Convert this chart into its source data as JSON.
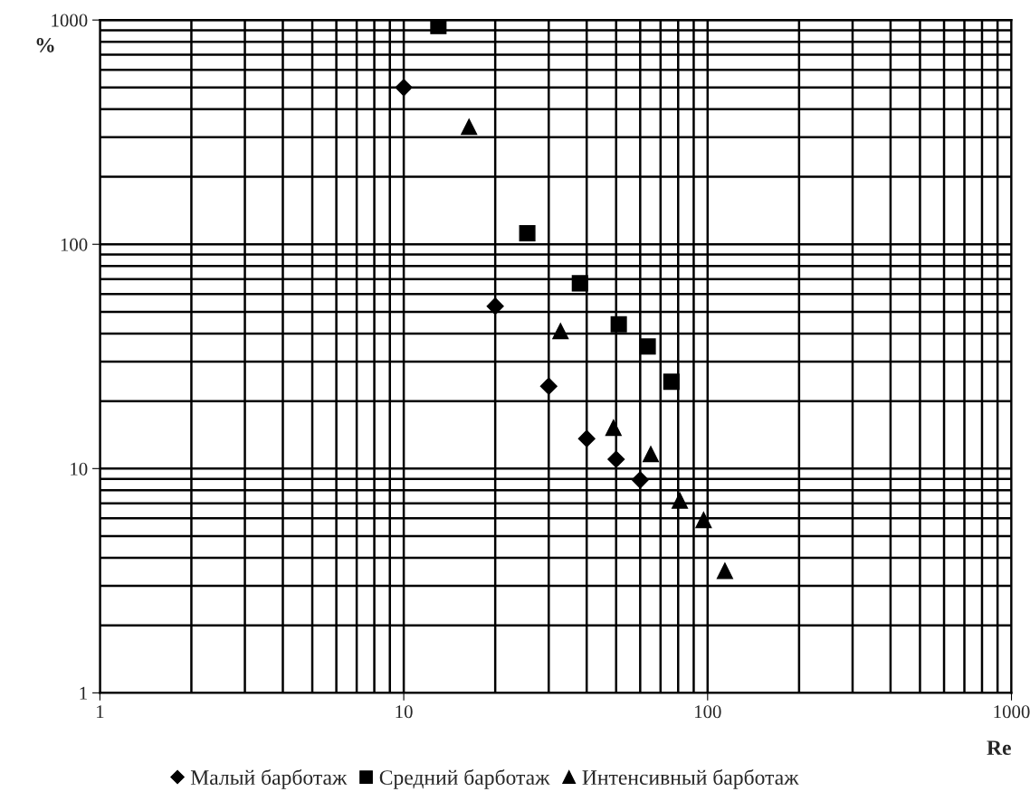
{
  "chart_data": {
    "type": "scatter",
    "xlabel": "Re",
    "ylabel": "%",
    "log": "xy",
    "xlim": [
      1,
      1000
    ],
    "xticks": [
      1,
      10,
      100,
      1000
    ],
    "ylim": [
      1,
      1000
    ],
    "yticks": [
      1,
      10,
      100,
      1000
    ],
    "grid": true,
    "legend": "bottom",
    "series": [
      {
        "name": "Малый барботаж",
        "color": "#000000",
        "marker": "diamond",
        "x": [
          10,
          20,
          30,
          40,
          50,
          60
        ],
        "values": [
          500,
          53,
          23.3,
          13.6,
          11,
          8.9
        ]
      },
      {
        "name": "Средний барботаж",
        "color": "#000000",
        "marker": "square",
        "x": [
          13,
          25.5,
          38,
          51,
          63.5,
          76
        ],
        "values": [
          940,
          112,
          67,
          44,
          35,
          24.4
        ]
      },
      {
        "name": "Интенсивный барботаж",
        "color": "#000000",
        "marker": "triangle",
        "x": [
          16.4,
          32.8,
          49,
          65,
          81,
          97,
          114
        ],
        "values": [
          334,
          41,
          15.2,
          11.6,
          7.2,
          5.9,
          3.5
        ]
      }
    ]
  }
}
